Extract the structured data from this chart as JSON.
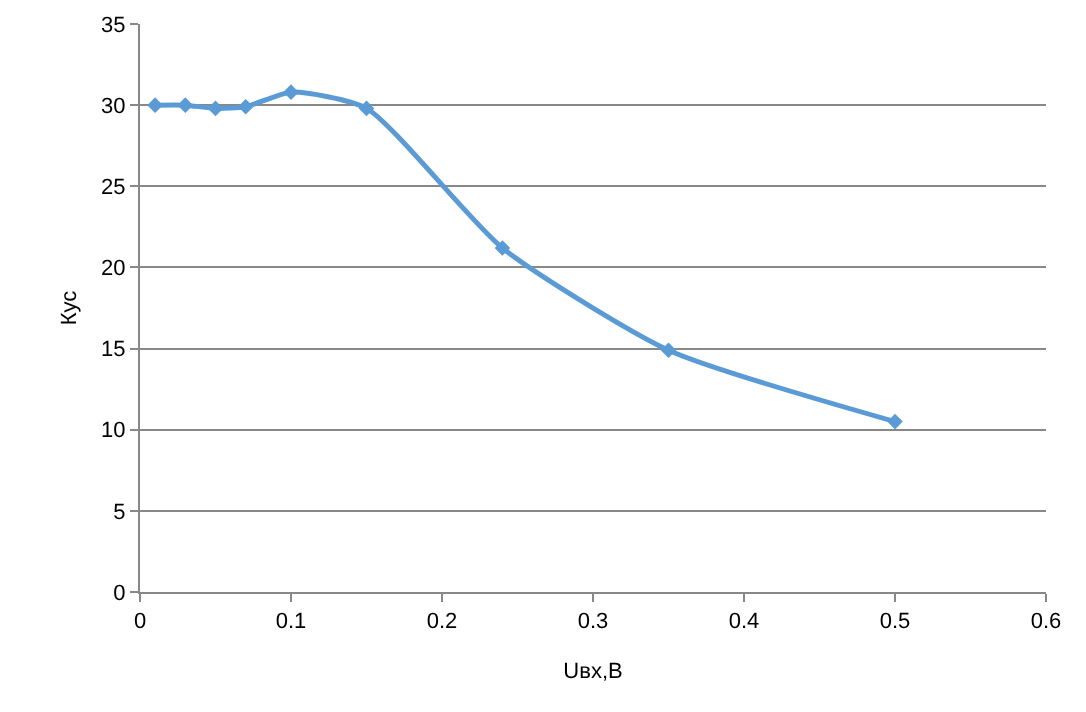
{
  "chart_data": {
    "type": "line",
    "xlabel": "Uвх,В",
    "ylabel": "Кус",
    "x": [
      0.01,
      0.03,
      0.05,
      0.07,
      0.1,
      0.15,
      0.24,
      0.35,
      0.5
    ],
    "series": [
      {
        "color": "#5b9bd5",
        "values": [
          30,
          30,
          29.8,
          29.9,
          30.8,
          29.8,
          21.2,
          14.9,
          10.5
        ]
      }
    ],
    "xlim": [
      0,
      0.6
    ],
    "xticks": [
      0,
      0.1,
      0.2,
      0.3,
      0.4,
      0.5,
      0.6
    ],
    "ylim": [
      0,
      35
    ],
    "yticks": [
      0,
      5,
      10,
      15,
      20,
      25,
      30,
      35
    ],
    "grid": "y",
    "marker": "diamond",
    "line_style": "solid"
  }
}
